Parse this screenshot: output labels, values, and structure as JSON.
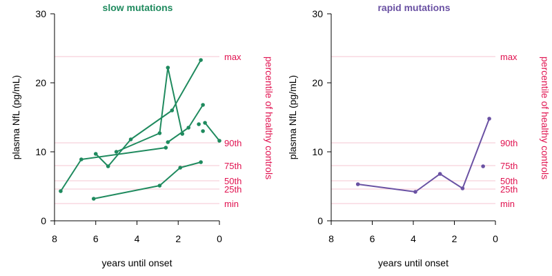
{
  "chart_data": [
    {
      "type": "line",
      "title": "slow mutations",
      "xlabel": "years until onset",
      "ylabel": "plasma NfL  (pg/mL)",
      "y2label": "percentile of healthy controls",
      "xlim": [
        8,
        0
      ],
      "ylim": [
        0,
        30
      ],
      "x_ticks": [
        "8",
        "6",
        "4",
        "2",
        "0"
      ],
      "y_ticks": [
        "0",
        "10",
        "20",
        "30"
      ],
      "grid": false,
      "color": "#1f8a5e",
      "ref_color": "#e0114f",
      "ref_lines": [
        {
          "label": "max",
          "y": 23.8
        },
        {
          "label": "90th",
          "y": 11.3
        },
        {
          "label": "75th",
          "y": 8.0
        },
        {
          "label": "50th",
          "y": 5.8
        },
        {
          "label": "25th",
          "y": 4.6
        },
        {
          "label": "min",
          "y": 2.5
        }
      ],
      "series": [
        {
          "points": [
            [
              7.7,
              4.3
            ],
            [
              6.7,
              8.9
            ],
            [
              2.6,
              10.6
            ]
          ]
        },
        {
          "points": [
            [
              6.0,
              9.7
            ],
            [
              5.4,
              7.9
            ],
            [
              4.3,
              11.8
            ],
            [
              2.3,
              16.0
            ],
            [
              0.9,
              23.3
            ]
          ]
        },
        {
          "points": [
            [
              5.0,
              10.0
            ],
            [
              2.9,
              12.7
            ],
            [
              2.5,
              22.2
            ],
            [
              1.8,
              12.6
            ]
          ]
        },
        {
          "points": [
            [
              6.1,
              3.2
            ],
            [
              2.9,
              5.1
            ],
            [
              1.9,
              7.7
            ],
            [
              0.9,
              8.5
            ]
          ]
        },
        {
          "points": [
            [
              2.5,
              11.4
            ],
            [
              1.5,
              13.5
            ],
            [
              0.8,
              16.8
            ]
          ]
        },
        {
          "points": [
            [
              0.7,
              14.2
            ],
            [
              0.0,
              11.6
            ]
          ]
        },
        {
          "points": [
            [
              0.8,
              13.0
            ]
          ]
        },
        {
          "points": [
            [
              1.0,
              14.0
            ]
          ]
        }
      ]
    },
    {
      "type": "line",
      "title": "rapid mutations",
      "xlabel": "years until onset",
      "ylabel": "plasma NfL  (pg/mL)",
      "y2label": "percentile of healthy controls",
      "xlim": [
        8,
        0
      ],
      "ylim": [
        0,
        30
      ],
      "x_ticks": [
        "8",
        "6",
        "4",
        "2",
        "0"
      ],
      "y_ticks": [
        "0",
        "10",
        "20",
        "30"
      ],
      "grid": false,
      "color": "#6a51a3",
      "ref_color": "#e0114f",
      "ref_lines": [
        {
          "label": "max",
          "y": 23.8
        },
        {
          "label": "90th",
          "y": 11.3
        },
        {
          "label": "75th",
          "y": 8.0
        },
        {
          "label": "50th",
          "y": 5.8
        },
        {
          "label": "25th",
          "y": 4.6
        },
        {
          "label": "min",
          "y": 2.5
        }
      ],
      "series": [
        {
          "points": [
            [
              6.7,
              5.3
            ],
            [
              3.9,
              4.2
            ],
            [
              2.7,
              6.8
            ],
            [
              1.6,
              4.7
            ],
            [
              0.3,
              14.8
            ]
          ]
        },
        {
          "points": [
            [
              0.6,
              7.9
            ]
          ]
        }
      ]
    }
  ]
}
